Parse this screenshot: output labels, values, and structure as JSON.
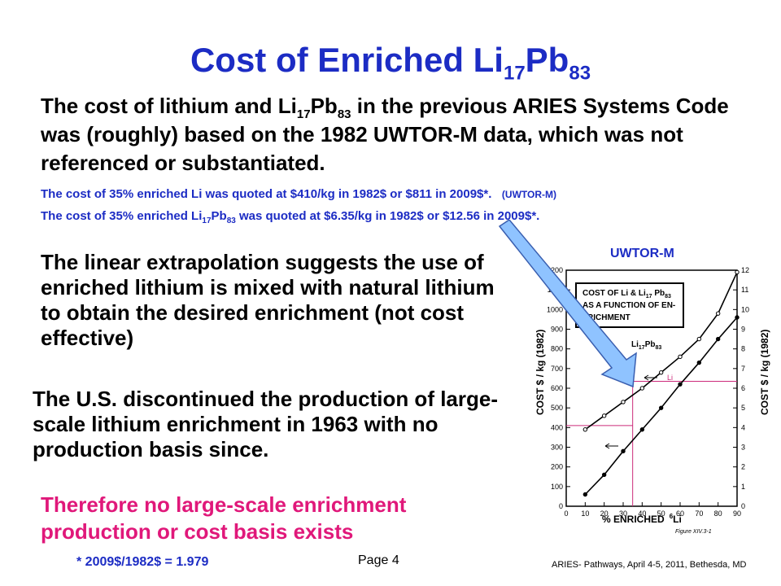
{
  "slide": {
    "title_main": "Cost of Enriched Li",
    "title_sub1": "17",
    "title_mid": "Pb",
    "title_sub2": "83",
    "intro_a": "The cost of lithium and Li",
    "intro_sub1": "17",
    "intro_b": "Pb",
    "intro_sub2": "83",
    "intro_c": " in the previous ARIES Systems Code was (roughly) based on the 1982 UWTOR-M data, which was not referenced or substantiated.",
    "note1_text": "The cost of 35% enriched Li was quoted at $410/kg in 1982$ or $811 in 2009$*.",
    "note1_tag": "(UWTOR-M)",
    "note2_a": "The cost of 35% enriched Li",
    "note2_sub1": "17",
    "note2_b": "Pb",
    "note2_sub2": "83",
    "note2_c": " was quoted at $6.35/kg in 1982$ or $12.56 in 2009$*.",
    "para1": "The linear extrapolation suggests the use of enriched lithium is mixed with natural lithium to obtain the desired enrichment (not cost effective)",
    "para2": "The U.S. discontinued the production of large-scale lithium enrichment in 1963 with no production basis since.",
    "conclusion": "Therefore no large-scale enrichment production or cost basis exists",
    "footnote": "* 2009$/1982$ = 1.979",
    "page": "Page 4",
    "event": "ARIES- Pathways, April 4-5, 2011, Bethesda, MD"
  },
  "figure": {
    "source_label": "UWTOR-M",
    "box_line1": "COST OF Li & Li",
    "box_sub1": "17",
    "box_mid": " Pb",
    "box_sub2": "83",
    "box_line2": "AS A FUNCTION OF EN-",
    "box_line3": "RICHMENT",
    "curve_label_a": "Li",
    "curve_label_sub1": "17",
    "curve_label_b": "Pb",
    "curve_label_sub2": "83",
    "li_label": "Li",
    "left_axis_label": "COST  $ / kg  (1982)",
    "right_axis_label": "COST  $ / kg  (1982)",
    "x_axis_label_a": "% ENRICHED",
    "x_axis_label_b": "Li",
    "x_axis_sup": "6",
    "caption": "Figure XIV.3-1"
  },
  "chart_data": {
    "type": "line",
    "x": [
      10,
      20,
      30,
      40,
      50,
      60,
      70,
      80,
      90
    ],
    "xlabel": "% ENRICHED Li6",
    "ylabel_left": "COST $/kg (1982)",
    "ylabel_right": "COST $/kg (1982)",
    "xlim": [
      0,
      90
    ],
    "ylim_left": [
      0,
      1200
    ],
    "ylim_right": [
      0,
      12
    ],
    "x_ticks": [
      "0",
      "10",
      "20",
      "30",
      "40",
      "50",
      "60",
      "70",
      "80",
      "90"
    ],
    "y_ticks_left": [
      "0",
      "100",
      "200",
      "300",
      "400",
      "500",
      "600",
      "700",
      "800",
      "900",
      "1000",
      "1100",
      "1200"
    ],
    "y_ticks_right": [
      "0",
      "1",
      "2",
      "3",
      "4",
      "5",
      "6",
      "7",
      "8",
      "9",
      "10",
      "11",
      "12"
    ],
    "series": [
      {
        "name": "Li",
        "axis": "left",
        "values": [
          60,
          160,
          280,
          390,
          500,
          620,
          730,
          850,
          960
        ]
      },
      {
        "name": "Li17Pb83",
        "axis": "right",
        "values": [
          3.9,
          4.6,
          5.3,
          6.0,
          6.8,
          7.6,
          8.5,
          9.8,
          11.9
        ]
      }
    ],
    "highlight": {
      "x": 35,
      "li_cost": 410,
      "li17pb83_cost": 6.35
    },
    "line_color": "#000000",
    "highlight_color": "#cc2a7a"
  }
}
